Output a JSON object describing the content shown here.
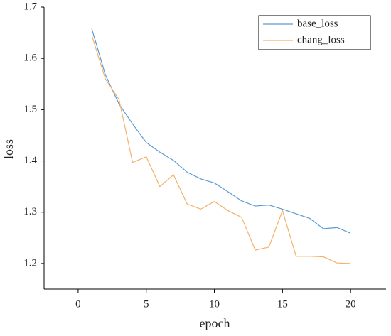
{
  "chart_data": {
    "type": "line",
    "x_label": "epoch",
    "y_label": "loss",
    "x": [
      1,
      2,
      3,
      4,
      5,
      6,
      7,
      8,
      9,
      10,
      11,
      12,
      13,
      14,
      15,
      16,
      17,
      18,
      19,
      20
    ],
    "series": [
      {
        "name": "base_loss",
        "color": "#5b9bd5",
        "values": [
          1.658,
          1.568,
          1.511,
          1.472,
          1.436,
          1.417,
          1.401,
          1.378,
          1.365,
          1.357,
          1.34,
          1.322,
          1.312,
          1.314,
          1.306,
          1.297,
          1.288,
          1.268,
          1.27,
          1.259
        ]
      },
      {
        "name": "chang_loss",
        "color": "#f4b16a",
        "values": [
          1.645,
          1.56,
          1.52,
          1.397,
          1.408,
          1.35,
          1.373,
          1.316,
          1.306,
          1.321,
          1.303,
          1.29,
          1.226,
          1.232,
          1.303,
          1.214,
          1.214,
          1.213,
          1.201,
          1.2
        ]
      }
    ],
    "xlim": [
      -2.5,
      22.6
    ],
    "ylim": [
      1.15,
      1.7
    ],
    "xticks": [
      0,
      5,
      10,
      15,
      20
    ],
    "yticks": [
      1.2,
      1.3,
      1.4,
      1.5,
      1.6,
      1.7
    ],
    "grid": false,
    "legend": "upper-right"
  }
}
